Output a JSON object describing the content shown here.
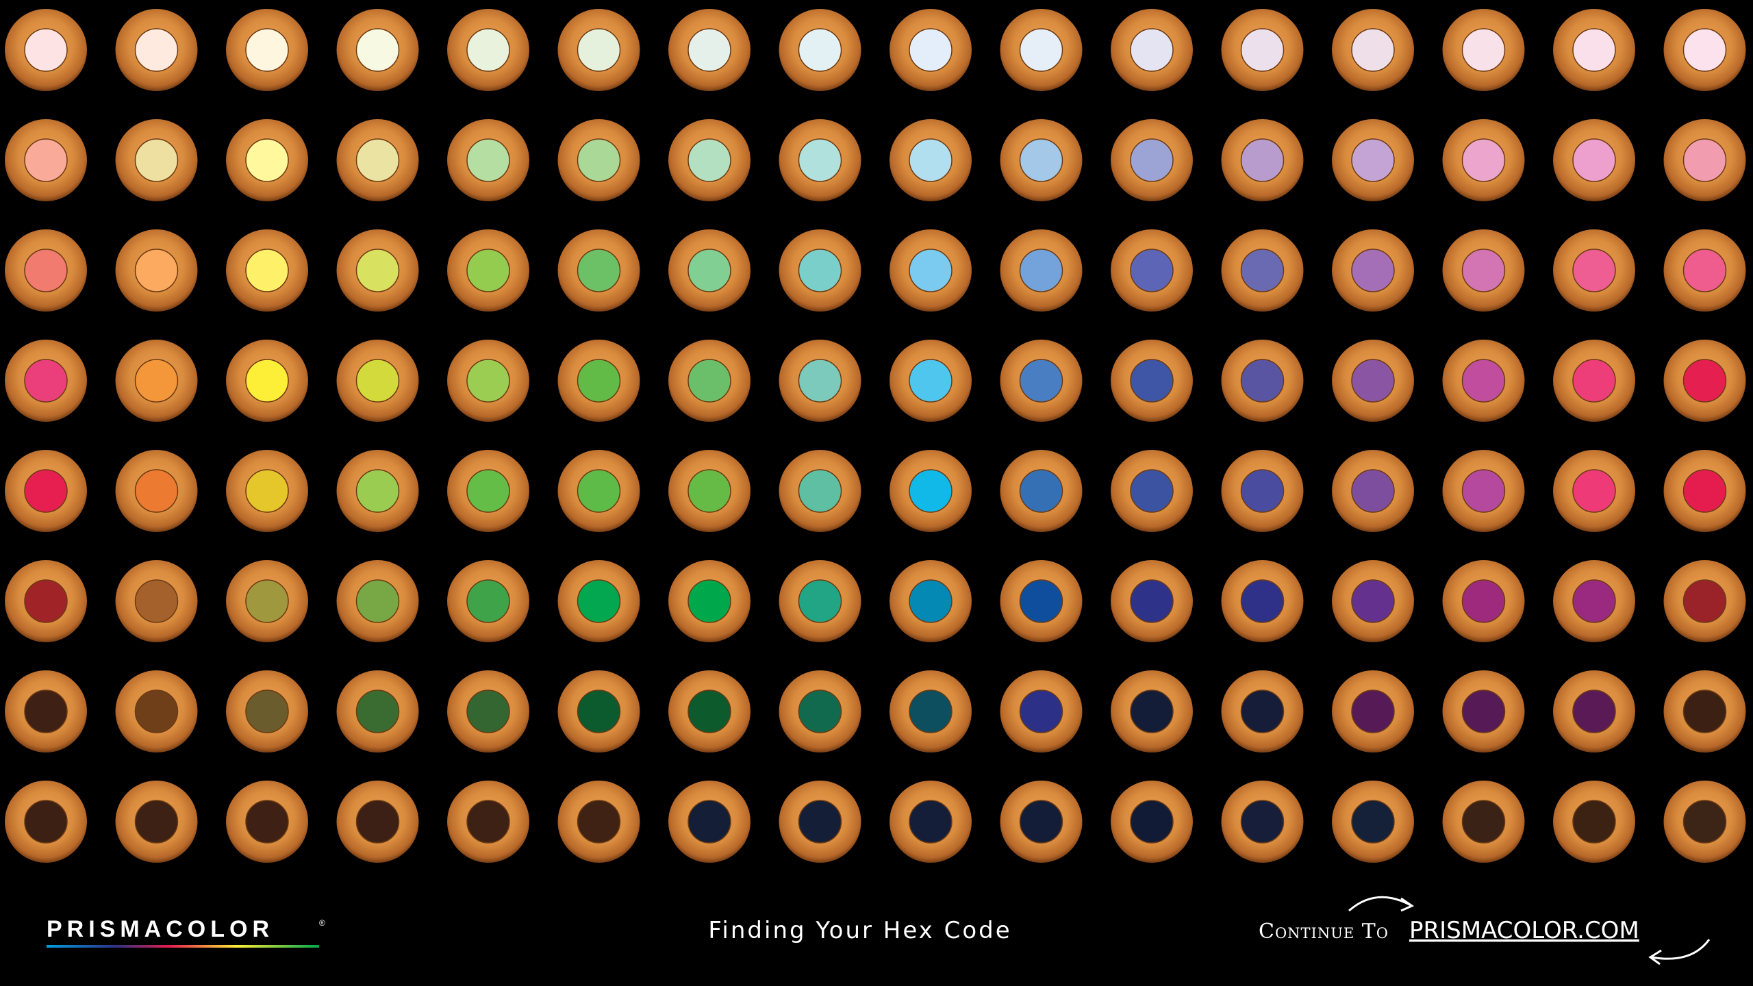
{
  "swatches": [
    [
      "#fde3e3",
      "#feeadf",
      "#fff6e0",
      "#f7f9e2",
      "#e8f2dc",
      "#e5f1dc",
      "#e6f0ea",
      "#e4f1f4",
      "#e3eefa",
      "#e6eef8",
      "#e4e4f2",
      "#ece0ec",
      "#eedfe9",
      "#f9e1ea",
      "#fae0ea",
      "#fbe2ec"
    ],
    [
      "#f9aa98",
      "#ede0a0",
      "#fff89d",
      "#ebe3a1",
      "#b5dea3",
      "#aad896",
      "#b3e0c0",
      "#b0e1dd",
      "#b2dff0",
      "#a3c8e8",
      "#9ba4d4",
      "#b89ccd",
      "#c4a4d4",
      "#eca5cd",
      "#eda0cd",
      "#f29cb0"
    ],
    [
      "#f07b6e",
      "#fbaa60",
      "#fef068",
      "#d8e160",
      "#93cc4f",
      "#6cc065",
      "#81cf93",
      "#7bcfca",
      "#7acbef",
      "#74a3db",
      "#5d66b6",
      "#6a6ab2",
      "#a56fb7",
      "#d475b3",
      "#ef5e92",
      "#ef5d8f"
    ],
    [
      "#eb3f7c",
      "#f4963a",
      "#fdee37",
      "#d3da3b",
      "#9bcd52",
      "#62bb47",
      "#6bbf6a",
      "#7ccabb",
      "#4fc6ee",
      "#4a7ec3",
      "#3f55a6",
      "#5a55a2",
      "#8a55a2",
      "#c04d9e",
      "#ee3e7a",
      "#e51f4f"
    ],
    [
      "#e61f50",
      "#ec7a31",
      "#e5c72c",
      "#9acc52",
      "#64bd46",
      "#5fbb47",
      "#66bb46",
      "#5fbfa3",
      "#11b9e9",
      "#3570b5",
      "#3c53a2",
      "#4a4ca0",
      "#7e4e9e",
      "#b4499e",
      "#ee3a76",
      "#e51d4e"
    ],
    [
      "#a02427",
      "#a5612c",
      "#a0983e",
      "#78a845",
      "#3fa34a",
      "#02a74f",
      "#00a84c",
      "#21a584",
      "#0488b4",
      "#0f4e9d",
      "#2e3389",
      "#2f3188",
      "#64318e",
      "#9e2a7d",
      "#9a2a7f",
      "#9a2329"
    ],
    [
      "#3e2014",
      "#6e3f19",
      "#6a5c2c",
      "#3a6b30",
      "#336631",
      "#0b5b2e",
      "#0d5a2c",
      "#126a4e",
      "#0d4f5f",
      "#2c3086",
      "#141d38",
      "#151d38",
      "#561b57",
      "#561a56",
      "#5a1a55",
      "#3d2014"
    ],
    [
      "#3b2013",
      "#3d2114",
      "#3e2114",
      "#3c2015",
      "#3e2115",
      "#3f2214",
      "#141e36",
      "#151e37",
      "#151e38",
      "#141d38",
      "#121b35",
      "#161e3a",
      "#152039",
      "#3b2216",
      "#3c2213",
      "#3c2416"
    ]
  ],
  "footer": {
    "logo": "PRISMACOLOR",
    "logo_mark": "®",
    "title": "Finding Your Hex Code",
    "link_prefix": "Continue To",
    "link": "PRISMACOLOR.COM"
  }
}
